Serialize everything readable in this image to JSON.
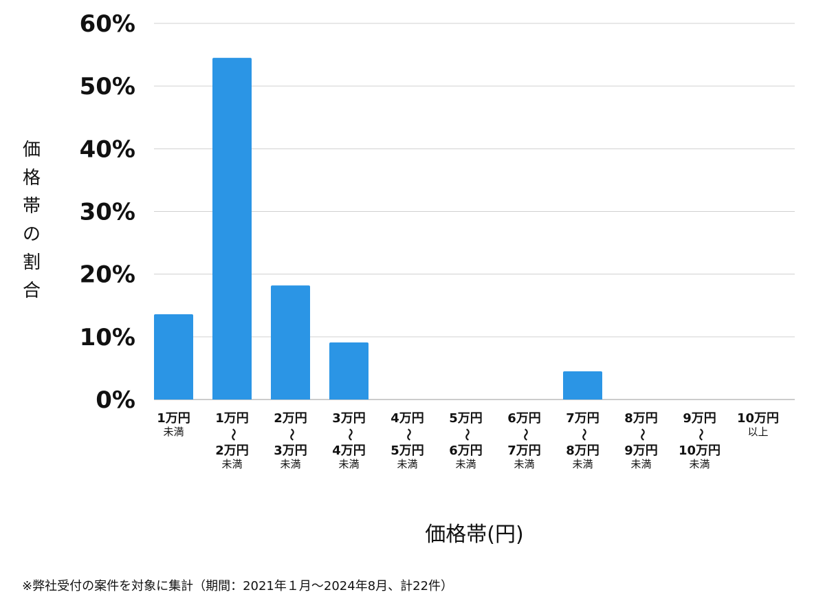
{
  "chart_data": {
    "type": "bar",
    "title": "",
    "xlabel": "価格帯(円)",
    "ylabel": "価格帯の割合",
    "ylim": [
      0,
      60
    ],
    "yticks": [
      "0%",
      "10%",
      "20%",
      "30%",
      "40%",
      "50%",
      "60%"
    ],
    "grid": true,
    "bar_color": "#2b95e5",
    "categories": [
      {
        "from": "1万円",
        "sep": "",
        "to": "",
        "suffix": "未満"
      },
      {
        "from": "1万円",
        "sep": "〜",
        "to": "2万円",
        "suffix": "未満"
      },
      {
        "from": "2万円",
        "sep": "〜",
        "to": "3万円",
        "suffix": "未満"
      },
      {
        "from": "3万円",
        "sep": "〜",
        "to": "4万円",
        "suffix": "未満"
      },
      {
        "from": "4万円",
        "sep": "〜",
        "to": "5万円",
        "suffix": "未満"
      },
      {
        "from": "5万円",
        "sep": "〜",
        "to": "6万円",
        "suffix": "未満"
      },
      {
        "from": "6万円",
        "sep": "〜",
        "to": "7万円",
        "suffix": "未満"
      },
      {
        "from": "7万円",
        "sep": "〜",
        "to": "8万円",
        "suffix": "未満"
      },
      {
        "from": "8万円",
        "sep": "〜",
        "to": "9万円",
        "suffix": "未満"
      },
      {
        "from": "9万円",
        "sep": "〜",
        "to": "10万円",
        "suffix": "未満"
      },
      {
        "from": "10万円",
        "sep": "",
        "to": "",
        "suffix": "以上"
      }
    ],
    "values": [
      13.6,
      54.5,
      18.2,
      9.1,
      0,
      0,
      0,
      4.5,
      0,
      0,
      0
    ]
  },
  "footnote": "※弊社受付の案件を対象に集計（期間：2021年１月〜2024年8月、計22件）"
}
